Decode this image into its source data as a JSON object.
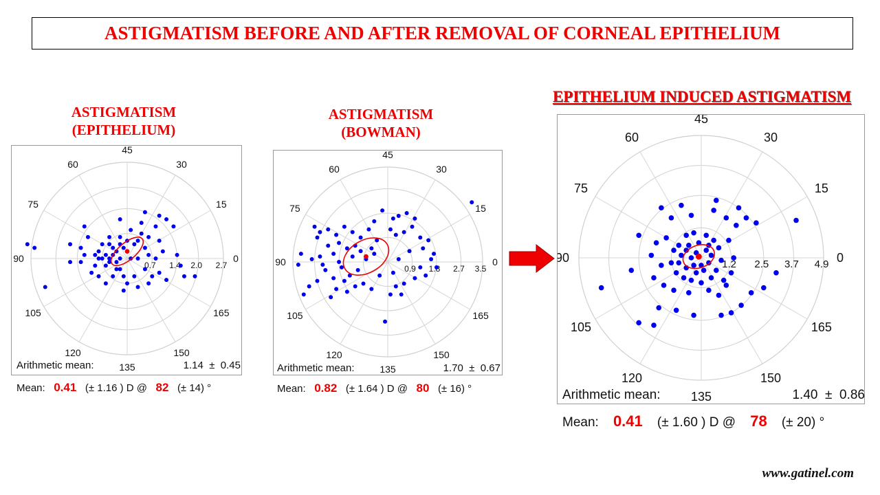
{
  "title": "ASTIGMATISM BEFORE AND AFTER REMOVAL OF CORNEAL EPITHELIUM",
  "footer": "www.gatinel.com",
  "colors": {
    "title": "#ee0000",
    "points": "#0000ee",
    "mean": "#ee0000",
    "arrow": "#ee0000"
  },
  "arrow_icon": "right-arrow-icon",
  "panels": [
    {
      "id": "epithelium",
      "title_lines": [
        "ASTIGMATISM",
        "(EPITHELIUM)"
      ],
      "arith_label": "Arithmetic mean:",
      "arith_value": "1.14",
      "arith_pm": "±",
      "arith_sd": "0.45",
      "mean_label": "Mean:",
      "mean_value": "0.41",
      "mean_sd_text": "(± 1.16 ) D @",
      "axis_value": "82",
      "axis_sd_text": "(± 14) °"
    },
    {
      "id": "bowman",
      "title_lines": [
        "ASTIGMATISM",
        "(BOWMAN)"
      ],
      "arith_label": "Arithmetic mean:",
      "arith_value": "1.70",
      "arith_pm": "±",
      "arith_sd": "0.67",
      "mean_label": "Mean:",
      "mean_value": "0.82",
      "mean_sd_text": "(± 1.64 ) D @",
      "axis_value": "80",
      "axis_sd_text": "(± 16) °"
    },
    {
      "id": "induced",
      "title_lines": [
        "EPITHELIUM INDUCED ASTIGMATISM"
      ],
      "arith_label": "Arithmetic mean:",
      "arith_value": "1.40",
      "arith_pm": "±",
      "arith_sd": "0.86",
      "mean_label": "Mean:",
      "mean_value": "0.41",
      "mean_sd_text": "(± 1.60 ) D @",
      "axis_value": "78",
      "axis_sd_text": "(± 20) °"
    }
  ],
  "chart_data": [
    {
      "type": "scatter",
      "coordinate_system": "double-angle polar (angle labels 0–165°)",
      "angle_labels": [
        "0",
        "15",
        "30",
        "45",
        "60",
        "75",
        "90",
        "105",
        "120",
        "135",
        "150",
        "165"
      ],
      "radial_ticks": [
        0.7,
        1.4,
        2.0,
        2.7
      ],
      "radial_max": 2.7,
      "mean_point": [
        0.0,
        0.2
      ],
      "ellipse": {
        "rx": 0.55,
        "ry": 0.24,
        "rotation_deg": -40
      },
      "points": [
        [
          -0.3,
          0.2
        ],
        [
          -0.2,
          0.0
        ],
        [
          -0.5,
          -0.1
        ],
        [
          -0.6,
          0.1
        ],
        [
          -0.7,
          0.0
        ],
        [
          -0.4,
          0.3
        ],
        [
          -0.3,
          -0.1
        ],
        [
          -0.8,
          0.2
        ],
        [
          -0.9,
          0.1
        ],
        [
          -0.6,
          -0.2
        ],
        [
          -0.2,
          0.4
        ],
        [
          0.2,
          0.4
        ],
        [
          0.3,
          0.0
        ],
        [
          0.5,
          0.3
        ],
        [
          0.6,
          0.1
        ],
        [
          0.5,
          -0.3
        ],
        [
          0.2,
          -0.5
        ],
        [
          -0.1,
          -0.5
        ],
        [
          -0.4,
          -0.5
        ],
        [
          0.1,
          0.8
        ],
        [
          0.4,
          0.7
        ],
        [
          0.6,
          0.6
        ],
        [
          0.9,
          0.5
        ],
        [
          1.0,
          0.2
        ],
        [
          0.9,
          -0.4
        ],
        [
          0.7,
          -0.5
        ],
        [
          -0.5,
          0.6
        ],
        [
          -1.0,
          -0.4
        ],
        [
          -1.3,
          -0.1
        ],
        [
          -1.3,
          0.3
        ],
        [
          -1.1,
          0.6
        ],
        [
          -1.6,
          0.4
        ],
        [
          -1.6,
          -0.1
        ],
        [
          -1.2,
          0.9
        ],
        [
          -2.3,
          -0.8
        ],
        [
          -2.6,
          0.3
        ],
        [
          -2.8,
          0.4
        ],
        [
          1.1,
          -0.6
        ],
        [
          1.4,
          0.1
        ],
        [
          1.6,
          -0.5
        ],
        [
          1.9,
          -0.5
        ],
        [
          1.3,
          0.9
        ],
        [
          1.1,
          1.1
        ],
        [
          0.9,
          1.2
        ],
        [
          0.8,
          0.9
        ],
        [
          0.4,
          1.0
        ],
        [
          0.0,
          -0.7
        ],
        [
          -0.1,
          -0.9
        ],
        [
          0.3,
          -0.8
        ],
        [
          0.6,
          -0.7
        ],
        [
          -0.6,
          -0.7
        ],
        [
          -0.8,
          -0.5
        ],
        [
          -0.2,
          0.6
        ],
        [
          -0.7,
          0.4
        ],
        [
          -0.5,
          0.0
        ],
        [
          -0.3,
          -0.3
        ],
        [
          0.1,
          0.0
        ],
        [
          0.0,
          0.5
        ],
        [
          -0.1,
          0.3
        ],
        [
          -0.4,
          0.1
        ],
        [
          -0.9,
          -0.2
        ],
        [
          -1.2,
          0.1
        ],
        [
          0.3,
          0.5
        ],
        [
          0.8,
          0.0
        ],
        [
          1.5,
          -0.2
        ],
        [
          -0.8,
          0.0
        ],
        [
          -0.2,
          -0.3
        ],
        [
          0.5,
          1.3
        ],
        [
          -0.2,
          1.1
        ],
        [
          -0.5,
          0.4
        ]
      ]
    },
    {
      "type": "scatter",
      "coordinate_system": "double-angle polar (angle labels 0–165°)",
      "angle_labels": [
        "0",
        "15",
        "30",
        "45",
        "60",
        "75",
        "90",
        "105",
        "120",
        "135",
        "150",
        "165"
      ],
      "radial_ticks": [
        0.9,
        1.8,
        2.7,
        3.5
      ],
      "radial_max": 3.5,
      "mean_point": [
        -0.8,
        0.2
      ],
      "ellipse": {
        "rx": 0.9,
        "ry": 0.6,
        "rotation_deg": -30
      },
      "points": [
        [
          -0.5,
          0.3
        ],
        [
          -0.8,
          0.1
        ],
        [
          -1.0,
          0.4
        ],
        [
          -1.3,
          0.2
        ],
        [
          -1.5,
          0.5
        ],
        [
          -1.8,
          0.0
        ],
        [
          -2.0,
          0.3
        ],
        [
          -2.2,
          0.6
        ],
        [
          -2.5,
          0.2
        ],
        [
          -2.8,
          0.1
        ],
        [
          -3.2,
          0.3
        ],
        [
          -3.3,
          -0.1
        ],
        [
          -1.1,
          -0.3
        ],
        [
          -1.4,
          -0.5
        ],
        [
          -1.7,
          -0.2
        ],
        [
          -2.0,
          -0.6
        ],
        [
          -2.3,
          -0.3
        ],
        [
          -2.6,
          -0.7
        ],
        [
          -2.9,
          -0.9
        ],
        [
          -3.1,
          -1.2
        ],
        [
          -1.0,
          0.9
        ],
        [
          -1.3,
          1.1
        ],
        [
          -1.6,
          1.3
        ],
        [
          -1.9,
          1.0
        ],
        [
          -2.2,
          1.2
        ],
        [
          -2.5,
          1.1
        ],
        [
          -2.7,
          1.3
        ],
        [
          -0.7,
          1.2
        ],
        [
          -0.5,
          1.5
        ],
        [
          -0.2,
          1.9
        ],
        [
          0.2,
          1.6
        ],
        [
          0.4,
          1.7
        ],
        [
          0.7,
          1.8
        ],
        [
          1.0,
          1.6
        ],
        [
          0.9,
          1.3
        ],
        [
          0.6,
          1.1
        ],
        [
          0.3,
          1.0
        ],
        [
          0.1,
          1.2
        ],
        [
          1.2,
          0.9
        ],
        [
          1.5,
          0.8
        ],
        [
          1.3,
          0.5
        ],
        [
          1.7,
          0.3
        ],
        [
          1.6,
          0.1
        ],
        [
          1.8,
          -0.2
        ],
        [
          1.4,
          -0.5
        ],
        [
          1.2,
          -0.2
        ],
        [
          1.0,
          -0.6
        ],
        [
          0.6,
          -0.8
        ],
        [
          0.3,
          -0.9
        ],
        [
          0.1,
          -1.2
        ],
        [
          0.5,
          -1.2
        ],
        [
          -0.1,
          -2.2
        ],
        [
          -0.6,
          -1.0
        ],
        [
          -0.9,
          -0.8
        ],
        [
          -0.3,
          -0.5
        ],
        [
          0.2,
          -0.4
        ],
        [
          -1.2,
          -0.9
        ],
        [
          -1.5,
          -1.1
        ],
        [
          -1.9,
          -1.0
        ],
        [
          -2.1,
          -1.3
        ],
        [
          3.1,
          2.2
        ],
        [
          -1.8,
          0.7
        ],
        [
          -1.2,
          0.6
        ],
        [
          -0.6,
          0.5
        ],
        [
          -2.4,
          -0.1
        ],
        [
          0.8,
          0.4
        ],
        [
          0.4,
          0.1
        ],
        [
          -0.4,
          0.8
        ],
        [
          -1.6,
          -0.7
        ],
        [
          -2.6,
          0.9
        ]
      ]
    },
    {
      "type": "scatter",
      "coordinate_system": "double-angle polar (angle labels 0–165°)",
      "angle_labels": [
        "0",
        "15",
        "30",
        "45",
        "60",
        "75",
        "90",
        "105",
        "120",
        "135",
        "150",
        "165"
      ],
      "radial_ticks": [
        1.2,
        2.5,
        3.7,
        4.9
      ],
      "radial_max": 4.9,
      "mean_point": [
        -0.1,
        0.05
      ],
      "ellipse": {
        "rx": 0.65,
        "ry": 0.45,
        "rotation_deg": -20
      },
      "points": [
        [
          -0.2,
          0.2
        ],
        [
          -0.4,
          0.0
        ],
        [
          -0.6,
          0.3
        ],
        [
          -0.8,
          0.1
        ],
        [
          -0.3,
          -0.3
        ],
        [
          -0.6,
          -0.4
        ],
        [
          0.2,
          0.3
        ],
        [
          0.4,
          0.1
        ],
        [
          0.3,
          -0.2
        ],
        [
          0.1,
          -0.5
        ],
        [
          -0.1,
          0.6
        ],
        [
          0.0,
          -0.3
        ],
        [
          -0.9,
          0.5
        ],
        [
          -1.1,
          0.3
        ],
        [
          -1.2,
          -0.2
        ],
        [
          -1.0,
          -0.6
        ],
        [
          -0.7,
          -0.8
        ],
        [
          -0.4,
          -0.9
        ],
        [
          0.0,
          -1.0
        ],
        [
          0.4,
          -0.8
        ],
        [
          0.6,
          -0.5
        ],
        [
          0.8,
          -0.1
        ],
        [
          0.7,
          0.4
        ],
        [
          0.5,
          0.7
        ],
        [
          0.2,
          0.9
        ],
        [
          -0.3,
          1.0
        ],
        [
          -0.6,
          0.9
        ],
        [
          -1.4,
          0.8
        ],
        [
          -1.8,
          0.6
        ],
        [
          -2.0,
          0.1
        ],
        [
          -1.6,
          -0.3
        ],
        [
          -1.9,
          -0.8
        ],
        [
          -1.5,
          -1.1
        ],
        [
          -1.1,
          -1.3
        ],
        [
          -0.5,
          -1.4
        ],
        [
          0.3,
          -1.3
        ],
        [
          0.7,
          -1.5
        ],
        [
          1.0,
          -1.1
        ],
        [
          1.2,
          -0.6
        ],
        [
          1.3,
          0.0
        ],
        [
          1.1,
          0.7
        ],
        [
          1.4,
          1.3
        ],
        [
          1.8,
          1.6
        ],
        [
          1.5,
          2.0
        ],
        [
          2.2,
          1.4
        ],
        [
          1.0,
          1.6
        ],
        [
          0.5,
          1.9
        ],
        [
          -0.4,
          1.7
        ],
        [
          -0.8,
          2.1
        ],
        [
          -1.2,
          1.6
        ],
        [
          -1.6,
          2.0
        ],
        [
          3.8,
          1.5
        ],
        [
          3.0,
          -0.6
        ],
        [
          2.5,
          -1.2
        ],
        [
          2.0,
          -1.4
        ],
        [
          1.6,
          -1.9
        ],
        [
          1.2,
          -2.2
        ],
        [
          0.8,
          -2.3
        ],
        [
          -0.3,
          -2.3
        ],
        [
          -1.0,
          -2.1
        ],
        [
          -1.7,
          -2.0
        ],
        [
          -2.5,
          -2.6
        ],
        [
          -4.0,
          -1.2
        ],
        [
          -2.8,
          -0.5
        ],
        [
          -2.5,
          0.9
        ],
        [
          -1.9,
          -2.7
        ],
        [
          0.6,
          2.3
        ],
        [
          -0.2,
          -0.6
        ],
        [
          0.3,
          0.5
        ],
        [
          -0.5,
          0.5
        ],
        [
          0.9,
          -0.9
        ],
        [
          -0.9,
          -0.2
        ]
      ]
    }
  ]
}
